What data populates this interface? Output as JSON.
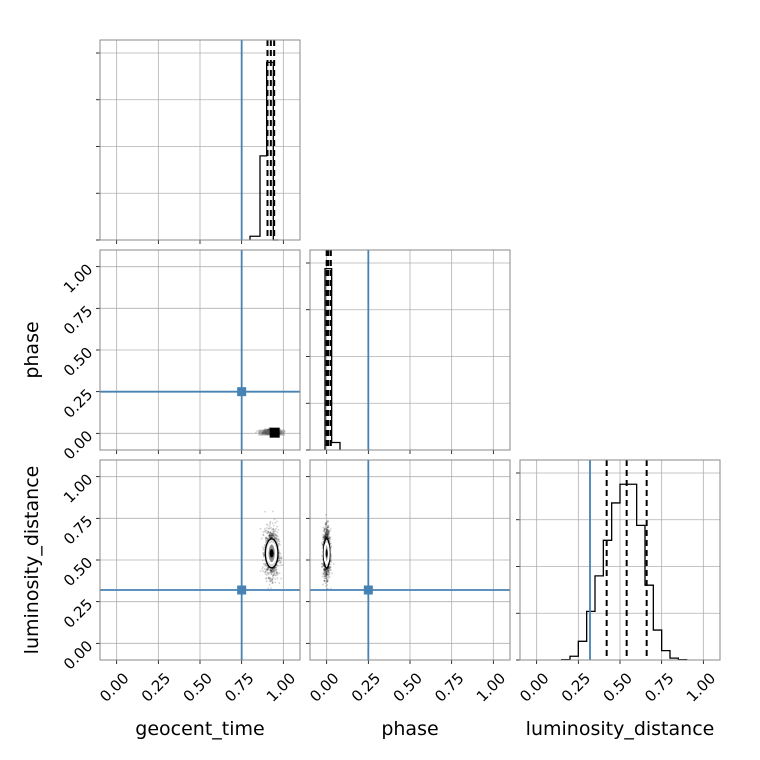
{
  "chart_data": {
    "type": "corner",
    "parameters": [
      "geocent_time",
      "phase",
      "luminosity_distance"
    ],
    "axis_labels": {
      "x": [
        "geocent_time",
        "phase",
        "luminosity_distance"
      ],
      "y": [
        "",
        "phase",
        "luminosity_distance"
      ]
    },
    "ticks": [
      0.0,
      0.25,
      0.5,
      0.75,
      1.0
    ],
    "tick_labels": [
      "0.00",
      "0.25",
      "0.50",
      "0.75",
      "1.00"
    ],
    "xlim": [
      -0.1,
      1.1
    ],
    "truth_values": {
      "geocent_time": 0.75,
      "phase": 0.25,
      "luminosity_distance": 0.32
    },
    "truth_color": "#4682b4",
    "grid": true,
    "quantiles": {
      "geocent_time": [
        0.905,
        0.925,
        0.945
      ],
      "phase": [
        0.0,
        0.01,
        0.025
      ],
      "luminosity_distance": [
        0.42,
        0.54,
        0.66
      ]
    },
    "histograms": {
      "geocent_time": {
        "edges": [
          0.8,
          0.86,
          0.9,
          0.92,
          0.94,
          0.97
        ],
        "counts": [
          0.02,
          0.45,
          0.95,
          0.95,
          0.0
        ]
      },
      "phase": {
        "edges": [
          -0.01,
          0.03,
          0.08
        ],
        "counts": [
          0.97,
          0.04
        ]
      },
      "luminosity_distance": {
        "edges": [
          0.15,
          0.2,
          0.25,
          0.3,
          0.35,
          0.4,
          0.45,
          0.5,
          0.55,
          0.6,
          0.65,
          0.7,
          0.75,
          0.8,
          0.85,
          0.9
        ],
        "counts": [
          0.002,
          0.02,
          0.1,
          0.26,
          0.45,
          0.64,
          0.84,
          0.94,
          0.94,
          0.72,
          0.4,
          0.16,
          0.05,
          0.01,
          0.002
        ]
      }
    },
    "joint_samples": {
      "geocent_time_vs_phase": {
        "x_center": 0.93,
        "x_spread": 0.05,
        "y_center": 0.01,
        "y_spread": 0.02
      },
      "geocent_time_vs_luminosity_distance": {
        "x_center": 0.93,
        "x_spread": 0.04,
        "y_center": 0.54,
        "y_spread": 0.14
      },
      "phase_vs_luminosity_distance": {
        "x_center": 0.0,
        "x_spread": 0.02,
        "y_center": 0.54,
        "y_spread": 0.14
      }
    }
  }
}
